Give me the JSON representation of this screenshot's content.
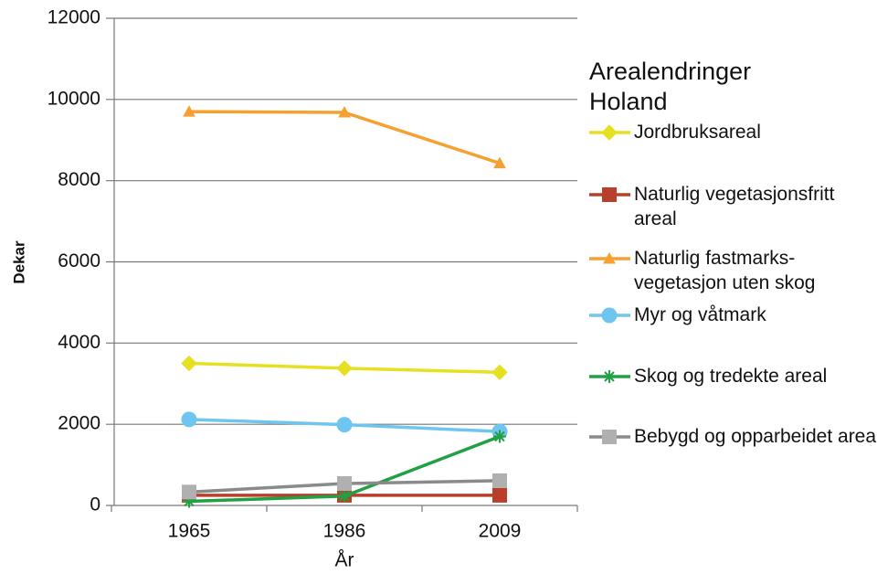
{
  "chart_data": {
    "type": "line",
    "legend_title": "Arealendringer Holand",
    "x_label": "År",
    "y_label": "Dekar",
    "categories": [
      "1965",
      "1986",
      "2009"
    ],
    "ylim": [
      0,
      12000
    ],
    "yticks": [
      0,
      2000,
      4000,
      6000,
      8000,
      10000,
      12000
    ],
    "grid": true,
    "legend_position": "right",
    "series": [
      {
        "name": "Jordbruksareal",
        "color": "#e6e022",
        "marker": "diamond",
        "values": [
          3500,
          3380,
          3280
        ]
      },
      {
        "name": "Naturlig vegetasjonsfritt areal",
        "color": "#b8402a",
        "marker": "square",
        "values": [
          250,
          250,
          250
        ]
      },
      {
        "name": "Naturlig fastmarks-vegetasjon uten skog",
        "color": "#f5a030",
        "marker": "triangle",
        "values": [
          9700,
          9680,
          8430
        ]
      },
      {
        "name": "Myr og våtmark",
        "color": "#6ec6f0",
        "marker": "circle",
        "values": [
          2120,
          1990,
          1820
        ]
      },
      {
        "name": "Skog og tredekte areal",
        "color": "#22a045",
        "marker": "star",
        "values": [
          100,
          230,
          1700
        ]
      },
      {
        "name": "Bebygd og opparbeidet areal",
        "color": "#8a8a8a",
        "marker": "square",
        "values": [
          330,
          540,
          610
        ]
      }
    ]
  }
}
